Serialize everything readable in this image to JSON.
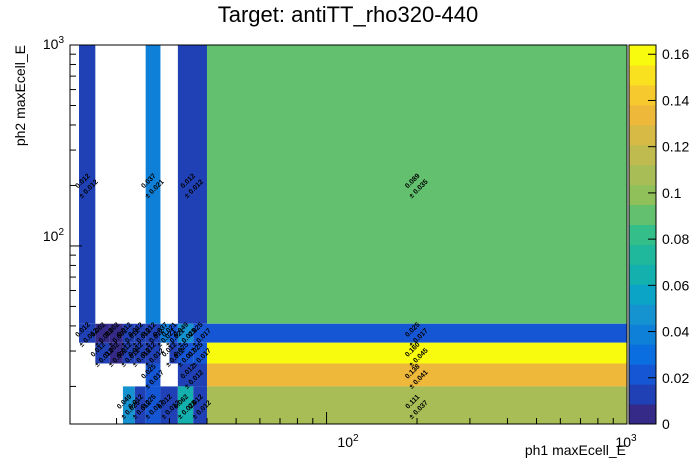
{
  "chart_data": {
    "type": "heatmap",
    "title": "Target: antiTT_rho320-440",
    "xlabel": "ph1 maxEcell_E",
    "ylabel": "ph2 maxEcell_E",
    "x_scale": "log",
    "y_scale": "log",
    "xlim": [
      14,
      1000
    ],
    "ylim": [
      13,
      1000
    ],
    "x_tick_labels": [
      "10^2",
      "10^3"
    ],
    "y_tick_labels": [
      "10^2",
      "10^3"
    ],
    "z_range": [
      0,
      0.164
    ],
    "z_tick_labels": [
      "0",
      "0.02",
      "0.04",
      "0.06",
      "0.08",
      "0.1",
      "0.12",
      "0.14",
      "0.16"
    ],
    "cells": [
      {
        "x0": 15,
        "x1": 17,
        "y0": 41,
        "y1": 1000,
        "value": 0.012,
        "error": 0.012
      },
      {
        "x0": 25,
        "x1": 28,
        "y0": 41,
        "y1": 1000,
        "value": 0.037,
        "error": 0.021
      },
      {
        "x0": 32,
        "x1": 40,
        "y0": 41,
        "y1": 1000,
        "value": 0.012,
        "error": 0.012
      },
      {
        "x0": 40,
        "x1": 1000,
        "y0": 41,
        "y1": 1000,
        "value": 0.089,
        "error": 0.035
      },
      {
        "x0": 15,
        "x1": 17,
        "y0": 33,
        "y1": 41,
        "value": 0.012,
        "error": 0.012
      },
      {
        "x0": 17,
        "x1": 19,
        "y0": 33,
        "y1": 41,
        "value": 0.002,
        "error": 0.002
      },
      {
        "x0": 19,
        "x1": 21,
        "y0": 33,
        "y1": 41,
        "value": 0.002,
        "error": 0.002
      },
      {
        "x0": 21,
        "x1": 23,
        "y0": 33,
        "y1": 41,
        "value": 0.012,
        "error": 0.012
      },
      {
        "x0": 23,
        "x1": 25,
        "y0": 33,
        "y1": 41,
        "value": 0.012,
        "error": 0.012
      },
      {
        "x0": 25,
        "x1": 28,
        "y0": 33,
        "y1": 41,
        "value": 0.012,
        "error": 0.012
      },
      {
        "x0": 28,
        "x1": 30,
        "y0": 33,
        "y1": 41,
        "value": 0.037,
        "error": 0.021
      },
      {
        "x0": 30,
        "x1": 32,
        "y0": 33,
        "y1": 41,
        "value": 0.021,
        "error": 0.021
      },
      {
        "x0": 32,
        "x1": 36,
        "y0": 33,
        "y1": 41,
        "value": 0.049,
        "error": 0.025
      },
      {
        "x0": 36,
        "x1": 40,
        "y0": 33,
        "y1": 41,
        "value": 0.025,
        "error": 0.017
      },
      {
        "x0": 40,
        "x1": 1000,
        "y0": 33,
        "y1": 41,
        "value": 0.025,
        "error": 0.017
      },
      {
        "x0": 17,
        "x1": 19,
        "y0": 26,
        "y1": 33,
        "value": 0.012,
        "error": 0.012
      },
      {
        "x0": 19,
        "x1": 21,
        "y0": 26,
        "y1": 33,
        "value": 0.002,
        "error": 0.002
      },
      {
        "x0": 21,
        "x1": 23,
        "y0": 26,
        "y1": 33,
        "value": 0.012,
        "error": 0.012
      },
      {
        "x0": 23,
        "x1": 25,
        "y0": 26,
        "y1": 33,
        "value": 0.012,
        "error": 0.012
      },
      {
        "x0": 25,
        "x1": 28,
        "y0": 26,
        "y1": 33,
        "value": 0.012,
        "error": 0.012
      },
      {
        "x0": 30,
        "x1": 32,
        "y0": 26,
        "y1": 33,
        "value": 0.012,
        "error": 0.012
      },
      {
        "x0": 32,
        "x1": 36,
        "y0": 26,
        "y1": 33,
        "value": 0.025,
        "error": 0.017
      },
      {
        "x0": 36,
        "x1": 40,
        "y0": 26,
        "y1": 33,
        "value": 0.025,
        "error": 0.017
      },
      {
        "x0": 40,
        "x1": 1000,
        "y0": 26,
        "y1": 33,
        "value": 0.16,
        "error": 0.045
      },
      {
        "x0": 25,
        "x1": 28,
        "y0": 20,
        "y1": 26,
        "value": 0.025,
        "error": 0.017
      },
      {
        "x0": 32,
        "x1": 40,
        "y0": 20,
        "y1": 26,
        "value": 0.012,
        "error": 0.012
      },
      {
        "x0": 40,
        "x1": 1000,
        "y0": 20,
        "y1": 26,
        "value": 0.138,
        "error": 0.041
      },
      {
        "x0": 21,
        "x1": 23,
        "y0": 13,
        "y1": 20,
        "value": 0.049,
        "error": 0.025
      },
      {
        "x0": 23,
        "x1": 25,
        "y0": 13,
        "y1": 20,
        "value": 0.012,
        "error": 0.012
      },
      {
        "x0": 25,
        "x1": 28,
        "y0": 13,
        "y1": 20,
        "value": 0.025,
        "error": 0.017
      },
      {
        "x0": 28,
        "x1": 32,
        "y0": 13,
        "y1": 20,
        "value": 0.012,
        "error": 0.012
      },
      {
        "x0": 32,
        "x1": 36,
        "y0": 13,
        "y1": 20,
        "value": 0.062,
        "error": 0.028
      },
      {
        "x0": 36,
        "x1": 40,
        "y0": 13,
        "y1": 20,
        "value": 0.012,
        "error": 0.012
      },
      {
        "x0": 40,
        "x1": 1000,
        "y0": 13,
        "y1": 20,
        "value": 0.111,
        "error": 0.037
      }
    ],
    "palette": [
      "#352a87",
      "#1f41b5",
      "#1556d4",
      "#0a6ee1",
      "#0f80d7",
      "#1593d1",
      "#0ba4c7",
      "#13b0ad",
      "#1fb89d",
      "#33be8a",
      "#62c06e",
      "#8fc05a",
      "#a8bd55",
      "#c0bb4f",
      "#d7b945",
      "#eeb83b",
      "#f6c92f",
      "#f9e11f",
      "#f9fb0e"
    ]
  }
}
